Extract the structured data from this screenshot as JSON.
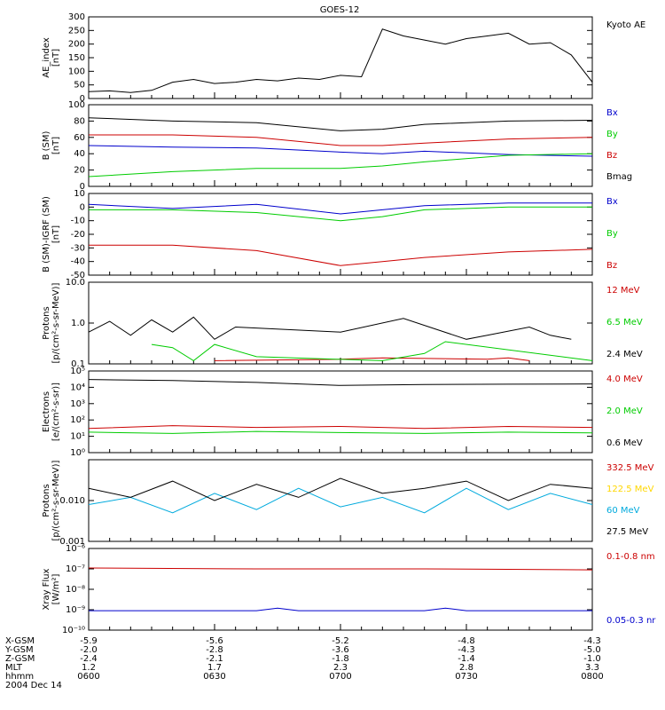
{
  "title": "GOES-12",
  "date": "2004 Dec 14",
  "colors": {
    "black": "#000000",
    "red": "#cc0000",
    "green": "#00cc00",
    "blue": "#0000cc",
    "yellow": "#ffd700",
    "cyan": "#00aadd"
  },
  "footer": {
    "rows": [
      {
        "label": "X-GSM",
        "values": [
          "-5.9",
          "-5.6",
          "-5.2",
          "-4.8",
          "-4.3"
        ]
      },
      {
        "label": "Y-GSM",
        "values": [
          "-2.0",
          "-2.8",
          "-3.6",
          "-4.3",
          "-5.0"
        ]
      },
      {
        "label": "Z-GSM",
        "values": [
          "-2.4",
          "-2.1",
          "-1.8",
          "-1.4",
          "-1.0"
        ]
      },
      {
        "label": "MLT",
        "values": [
          "1.2",
          "1.7",
          "2.3",
          "2.8",
          "3.3"
        ]
      },
      {
        "label": "hhmm",
        "values": [
          "0600",
          "0630",
          "0700",
          "0730",
          "0800"
        ]
      }
    ]
  },
  "chart_data": [
    {
      "type": "line",
      "ylabel": [
        "AE_index",
        "[nT]"
      ],
      "scale": "linear",
      "ylim": [
        0,
        300
      ],
      "yticks": [
        0,
        50,
        100,
        150,
        200,
        250,
        300
      ],
      "yticklabels": [
        "0",
        "50",
        "100",
        "150",
        "200",
        "250",
        "300"
      ],
      "series": [
        {
          "name": "Kyoto AE",
          "color": "black",
          "x": [
            0,
            5,
            10,
            15,
            20,
            25,
            30,
            35,
            40,
            45,
            50,
            55,
            60,
            65,
            70,
            75,
            80,
            85,
            90,
            95,
            100,
            105,
            110,
            115,
            120
          ],
          "y": [
            25,
            28,
            22,
            30,
            60,
            70,
            55,
            60,
            70,
            65,
            75,
            70,
            85,
            80,
            255,
            230,
            215,
            200,
            220,
            230,
            240,
            200,
            205,
            160,
            60
          ]
        }
      ]
    },
    {
      "type": "line",
      "ylabel": [
        "B (SM)",
        "[nT]"
      ],
      "scale": "linear",
      "ylim": [
        0,
        100
      ],
      "yticks": [
        0,
        20,
        40,
        60,
        80,
        100
      ],
      "yticklabels": [
        "0",
        "20",
        "40",
        "60",
        "80",
        "100"
      ],
      "series": [
        {
          "name": "Bx",
          "color": "blue",
          "x": [
            0,
            20,
            40,
            60,
            70,
            80,
            100,
            120
          ],
          "y": [
            50,
            48,
            47,
            42,
            40,
            43,
            39,
            37
          ]
        },
        {
          "name": "By",
          "color": "green",
          "x": [
            0,
            20,
            40,
            60,
            70,
            80,
            100,
            120
          ],
          "y": [
            12,
            18,
            22,
            22,
            25,
            30,
            38,
            40
          ]
        },
        {
          "name": "Bz",
          "color": "red",
          "x": [
            0,
            20,
            40,
            60,
            70,
            80,
            100,
            120
          ],
          "y": [
            63,
            63,
            60,
            50,
            50,
            53,
            58,
            60
          ]
        },
        {
          "name": "Bmag",
          "color": "black",
          "x": [
            0,
            20,
            40,
            60,
            70,
            80,
            100,
            120
          ],
          "y": [
            84,
            80,
            78,
            68,
            70,
            76,
            80,
            81
          ]
        }
      ]
    },
    {
      "type": "line",
      "ylabel": [
        "B (SM)-IGRF (SM)",
        "[nT]"
      ],
      "scale": "linear",
      "ylim": [
        -50,
        10
      ],
      "yticks": [
        -50,
        -40,
        -30,
        -20,
        -10,
        0,
        10
      ],
      "yticklabels": [
        "-50",
        "-40",
        "-30",
        "-20",
        "-10",
        "0",
        "10"
      ],
      "series": [
        {
          "name": "Bx",
          "color": "blue",
          "x": [
            0,
            20,
            40,
            60,
            70,
            80,
            100,
            120
          ],
          "y": [
            2,
            -1,
            2,
            -5,
            -2,
            1,
            3,
            3
          ]
        },
        {
          "name": "By",
          "color": "green",
          "x": [
            0,
            20,
            40,
            60,
            70,
            80,
            100,
            120
          ],
          "y": [
            -2,
            -2,
            -4,
            -10,
            -7,
            -2,
            0,
            0
          ]
        },
        {
          "name": "Bz",
          "color": "red",
          "x": [
            0,
            20,
            40,
            60,
            70,
            80,
            100,
            120
          ],
          "y": [
            -28,
            -28,
            -32,
            -43,
            -40,
            -37,
            -33,
            -31
          ]
        }
      ]
    },
    {
      "type": "line",
      "ylabel": [
        "Protons",
        "[p/(cm²-s-sr-MeV)]"
      ],
      "scale": "log",
      "ylim": [
        0.1,
        10
      ],
      "yticks": [
        0.1,
        1,
        10
      ],
      "yticklabels": [
        "0.1",
        "1.0",
        "10.0"
      ],
      "series": [
        {
          "name": "12 MeV",
          "color": "red",
          "x": [
            30,
            60,
            70,
            95,
            100,
            105
          ],
          "y": [
            0.12,
            0.13,
            0.14,
            0.13,
            0.14,
            0.12
          ]
        },
        {
          "name": "6.5 MeV",
          "color": "green",
          "x": [
            15,
            20,
            25,
            30,
            40,
            70,
            80,
            85,
            120
          ],
          "y": [
            0.3,
            0.25,
            0.12,
            0.3,
            0.15,
            0.12,
            0.18,
            0.35,
            0.12
          ]
        },
        {
          "name": "2.4 MeV",
          "color": "black",
          "x": [
            0,
            5,
            10,
            15,
            20,
            25,
            30,
            35,
            60,
            75,
            90,
            95,
            105,
            110,
            115
          ],
          "y": [
            0.6,
            1.1,
            0.5,
            1.2,
            0.6,
            1.4,
            0.4,
            0.8,
            0.6,
            1.3,
            0.4,
            0.5,
            0.8,
            0.5,
            0.4
          ]
        }
      ]
    },
    {
      "type": "line",
      "ylabel": [
        "Electrons",
        "[e/(cm²-s-sr)]"
      ],
      "scale": "log",
      "ylim": [
        1,
        100000
      ],
      "yticks": [
        1,
        10,
        100,
        1000,
        10000,
        100000
      ],
      "yticklabels": [
        "10⁰",
        "10¹",
        "10²",
        "10³",
        "10⁴",
        "10⁵"
      ],
      "series": [
        {
          "name": "4.0 MeV",
          "color": "red",
          "x": [
            0,
            20,
            40,
            60,
            80,
            100,
            120
          ],
          "y": [
            30,
            45,
            35,
            40,
            30,
            40,
            35
          ]
        },
        {
          "name": "2.0 MeV",
          "color": "green",
          "x": [
            0,
            20,
            40,
            60,
            80,
            100,
            120
          ],
          "y": [
            18,
            15,
            20,
            17,
            15,
            18,
            16
          ]
        },
        {
          "name": "0.6 MeV",
          "color": "black",
          "x": [
            0,
            20,
            40,
            60,
            70,
            80,
            100,
            120
          ],
          "y": [
            30000,
            26000,
            20000,
            13000,
            14000,
            15000,
            15500,
            16000
          ]
        }
      ]
    },
    {
      "type": "line",
      "ylabel": [
        "Protons",
        "[p/(cm²-s-sr-MeV)]"
      ],
      "scale": "log",
      "ylim": [
        0.001,
        0.1
      ],
      "yticks": [
        0.001,
        0.01,
        0.1
      ],
      "yticklabels": [
        "0.001",
        "0.010",
        ""
      ],
      "series": [
        {
          "name": "332.5 MeV",
          "color": "red",
          "x": [],
          "y": []
        },
        {
          "name": "122.5 MeV",
          "color": "yellow",
          "x": [],
          "y": []
        },
        {
          "name": "60 MeV",
          "color": "cyan",
          "x": [
            0,
            10,
            20,
            30,
            40,
            50,
            60,
            70,
            80,
            90,
            100,
            110,
            120
          ],
          "y": [
            0.008,
            0.012,
            0.005,
            0.015,
            0.006,
            0.02,
            0.007,
            0.012,
            0.005,
            0.02,
            0.006,
            0.015,
            0.008
          ]
        },
        {
          "name": "27.5 MeV",
          "color": "black",
          "x": [
            0,
            10,
            20,
            30,
            40,
            50,
            60,
            70,
            80,
            90,
            100,
            110,
            120
          ],
          "y": [
            0.02,
            0.012,
            0.03,
            0.01,
            0.025,
            0.012,
            0.035,
            0.015,
            0.02,
            0.03,
            0.01,
            0.025,
            0.02
          ]
        }
      ]
    },
    {
      "type": "line",
      "ylabel": [
        "Xray Flux",
        "[W/m²]"
      ],
      "scale": "log",
      "ylim": [
        1e-10,
        1e-06
      ],
      "yticks": [
        1e-10,
        1e-09,
        1e-08,
        1e-07,
        1e-06
      ],
      "yticklabels": [
        "10⁻¹⁰",
        "10⁻⁹",
        "10⁻⁸",
        "10⁻⁷",
        "10⁻⁶"
      ],
      "series": [
        {
          "name": "0.1-0.8 nm",
          "color": "red",
          "x": [
            0,
            40,
            80,
            120
          ],
          "y": [
            1.1e-07,
            1e-07,
            1e-07,
            9e-08
          ]
        },
        {
          "name": "0.05-0.3 nr",
          "color": "blue",
          "x": [
            0,
            40,
            45,
            50,
            80,
            85,
            90,
            120
          ],
          "y": [
            9e-10,
            9e-10,
            1.2e-09,
            9e-10,
            9e-10,
            1.2e-09,
            9e-10,
            9e-10
          ]
        }
      ]
    }
  ]
}
